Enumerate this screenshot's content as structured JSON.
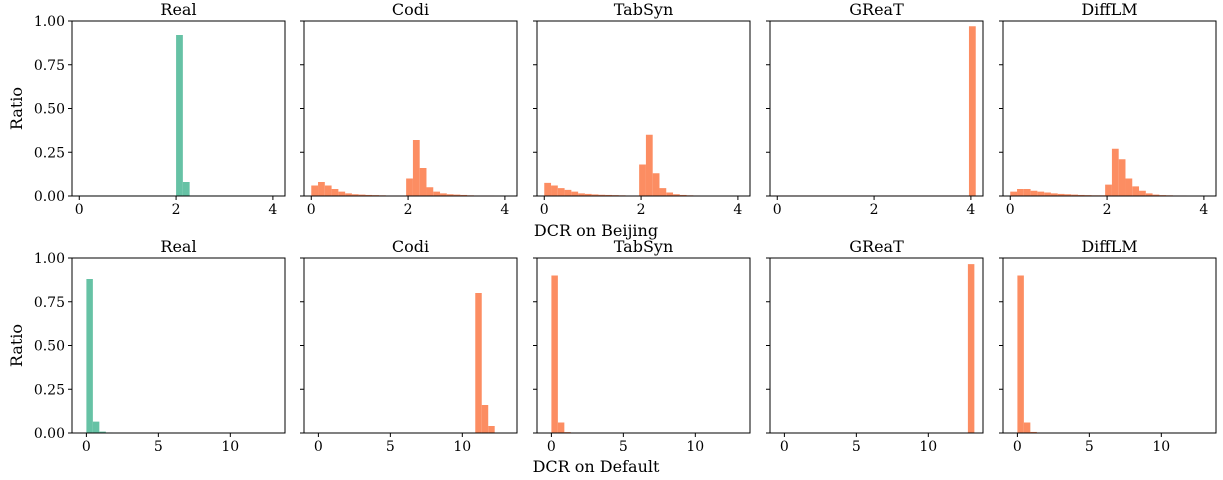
{
  "figure": {
    "ylabel": "Ratio",
    "colors": {
      "real": "#66c2a5",
      "synthetic": "#fc8d62"
    }
  },
  "chart_data": [
    {
      "type": "bar",
      "row": 0,
      "title": "Real",
      "xlabel": "",
      "color": "#66c2a5",
      "xlim": [
        -0.15,
        4.25
      ],
      "ylim": [
        0,
        1.0
      ],
      "xticks": [
        0,
        2,
        4
      ],
      "yticks": [
        "0.00",
        "0.25",
        "0.50",
        "0.75",
        "1.00"
      ],
      "bin_width": 0.14,
      "bins": [
        [
          -0.1,
          0.003
        ],
        [
          0.04,
          0.003
        ],
        [
          0.18,
          0.003
        ],
        [
          0.32,
          0.003
        ],
        [
          0.46,
          0.003
        ],
        [
          0.6,
          0.003
        ],
        [
          0.74,
          0.003
        ],
        [
          0.88,
          0.003
        ],
        [
          1.02,
          0.003
        ],
        [
          1.16,
          0.003
        ],
        [
          1.3,
          0.003
        ],
        [
          1.44,
          0.003
        ],
        [
          1.58,
          0.003
        ],
        [
          1.72,
          0.003
        ],
        [
          1.86,
          0.003
        ],
        [
          2.0,
          0.92
        ],
        [
          2.14,
          0.08
        ],
        [
          2.28,
          0.003
        ],
        [
          2.42,
          0.003
        ],
        [
          2.56,
          0.003
        ],
        [
          2.7,
          0.003
        ],
        [
          2.84,
          0.003
        ],
        [
          2.98,
          0.003
        ],
        [
          3.12,
          0.003
        ],
        [
          3.26,
          0.003
        ],
        [
          3.4,
          0.003
        ],
        [
          3.54,
          0.003
        ],
        [
          3.68,
          0.003
        ],
        [
          3.82,
          0.003
        ],
        [
          3.96,
          0.003
        ]
      ]
    },
    {
      "type": "bar",
      "row": 0,
      "title": "Codi",
      "xlabel": "",
      "color": "#fc8d62",
      "xlim": [
        -0.15,
        4.25
      ],
      "ylim": [
        0,
        1.0
      ],
      "xticks": [
        0,
        2,
        4
      ],
      "yticks": [],
      "bin_width": 0.14,
      "bins": [
        [
          0.0,
          0.06
        ],
        [
          0.14,
          0.08
        ],
        [
          0.28,
          0.06
        ],
        [
          0.42,
          0.04
        ],
        [
          0.56,
          0.025
        ],
        [
          0.7,
          0.015
        ],
        [
          0.84,
          0.01
        ],
        [
          0.98,
          0.008
        ],
        [
          1.12,
          0.006
        ],
        [
          1.26,
          0.005
        ],
        [
          1.4,
          0.004
        ],
        [
          1.54,
          0.003
        ],
        [
          1.68,
          0.003
        ],
        [
          1.82,
          0.003
        ],
        [
          1.96,
          0.1
        ],
        [
          2.1,
          0.32
        ],
        [
          2.24,
          0.16
        ],
        [
          2.38,
          0.05
        ],
        [
          2.52,
          0.025
        ],
        [
          2.66,
          0.015
        ],
        [
          2.8,
          0.01
        ],
        [
          2.94,
          0.008
        ],
        [
          3.08,
          0.006
        ],
        [
          3.22,
          0.004
        ],
        [
          3.36,
          0.003
        ],
        [
          3.5,
          0.003
        ],
        [
          3.64,
          0.003
        ],
        [
          3.78,
          0.002
        ],
        [
          3.92,
          0.002
        ]
      ]
    },
    {
      "type": "bar",
      "row": 0,
      "title": "TabSyn",
      "xlabel": "",
      "color": "#fc8d62",
      "xlim": [
        -0.15,
        4.25
      ],
      "ylim": [
        0,
        1.0
      ],
      "xticks": [
        0,
        2,
        4
      ],
      "yticks": [],
      "bin_width": 0.14,
      "bins": [
        [
          0.0,
          0.075
        ],
        [
          0.14,
          0.06
        ],
        [
          0.28,
          0.045
        ],
        [
          0.42,
          0.035
        ],
        [
          0.56,
          0.025
        ],
        [
          0.7,
          0.015
        ],
        [
          0.84,
          0.012
        ],
        [
          0.98,
          0.009
        ],
        [
          1.12,
          0.007
        ],
        [
          1.26,
          0.006
        ],
        [
          1.4,
          0.005
        ],
        [
          1.54,
          0.004
        ],
        [
          1.68,
          0.003
        ],
        [
          1.82,
          0.003
        ],
        [
          1.96,
          0.18
        ],
        [
          2.1,
          0.35
        ],
        [
          2.24,
          0.13
        ],
        [
          2.38,
          0.045
        ],
        [
          2.52,
          0.02
        ],
        [
          2.66,
          0.01
        ],
        [
          2.8,
          0.006
        ],
        [
          2.94,
          0.004
        ],
        [
          3.08,
          0.003
        ],
        [
          3.22,
          0.002
        ],
        [
          3.36,
          0.002
        ],
        [
          3.5,
          0.002
        ],
        [
          3.64,
          0.002
        ],
        [
          3.78,
          0.002
        ],
        [
          3.92,
          0.002
        ]
      ]
    },
    {
      "type": "bar",
      "row": 0,
      "title": "GReaT",
      "xlabel": "",
      "color": "#fc8d62",
      "xlim": [
        -0.15,
        4.25
      ],
      "ylim": [
        0,
        1.0
      ],
      "xticks": [
        0,
        2,
        4
      ],
      "yticks": [],
      "bin_width": 0.14,
      "bins": [
        [
          -0.1,
          0.003
        ],
        [
          0.04,
          0.003
        ],
        [
          0.18,
          0.003
        ],
        [
          0.32,
          0.003
        ],
        [
          0.46,
          0.003
        ],
        [
          0.6,
          0.003
        ],
        [
          0.74,
          0.003
        ],
        [
          0.88,
          0.003
        ],
        [
          1.02,
          0.003
        ],
        [
          1.16,
          0.003
        ],
        [
          1.3,
          0.003
        ],
        [
          1.44,
          0.003
        ],
        [
          1.58,
          0.003
        ],
        [
          1.72,
          0.003
        ],
        [
          1.86,
          0.003
        ],
        [
          2.0,
          0.003
        ],
        [
          2.14,
          0.003
        ],
        [
          2.28,
          0.003
        ],
        [
          2.42,
          0.003
        ],
        [
          2.56,
          0.003
        ],
        [
          2.7,
          0.003
        ],
        [
          2.84,
          0.003
        ],
        [
          2.98,
          0.003
        ],
        [
          3.12,
          0.003
        ],
        [
          3.26,
          0.003
        ],
        [
          3.4,
          0.003
        ],
        [
          3.54,
          0.003
        ],
        [
          3.68,
          0.003
        ],
        [
          3.82,
          0.003
        ],
        [
          3.96,
          0.97
        ]
      ]
    },
    {
      "type": "bar",
      "row": 0,
      "title": "DiffLM",
      "xlabel": "",
      "color": "#fc8d62",
      "xlim": [
        -0.15,
        4.25
      ],
      "ylim": [
        0,
        1.0
      ],
      "xticks": [
        0,
        2,
        4
      ],
      "yticks": [],
      "bin_width": 0.14,
      "bins": [
        [
          0.0,
          0.025
        ],
        [
          0.14,
          0.04
        ],
        [
          0.28,
          0.04
        ],
        [
          0.42,
          0.03
        ],
        [
          0.56,
          0.025
        ],
        [
          0.7,
          0.02
        ],
        [
          0.84,
          0.015
        ],
        [
          0.98,
          0.012
        ],
        [
          1.12,
          0.01
        ],
        [
          1.26,
          0.008
        ],
        [
          1.4,
          0.006
        ],
        [
          1.54,
          0.005
        ],
        [
          1.68,
          0.004
        ],
        [
          1.82,
          0.004
        ],
        [
          1.96,
          0.065
        ],
        [
          2.1,
          0.27
        ],
        [
          2.24,
          0.21
        ],
        [
          2.38,
          0.1
        ],
        [
          2.52,
          0.055
        ],
        [
          2.66,
          0.03
        ],
        [
          2.8,
          0.015
        ],
        [
          2.94,
          0.008
        ],
        [
          3.08,
          0.005
        ],
        [
          3.22,
          0.004
        ],
        [
          3.36,
          0.003
        ],
        [
          3.5,
          0.003
        ],
        [
          3.64,
          0.002
        ],
        [
          3.78,
          0.002
        ],
        [
          3.92,
          0.002
        ]
      ]
    },
    {
      "type": "bar",
      "row": 1,
      "title": "Real",
      "xlabel": "",
      "color": "#66c2a5",
      "xlim": [
        -1.0,
        13.8
      ],
      "ylim": [
        0,
        1.0
      ],
      "xticks": [
        0,
        5,
        10
      ],
      "yticks": [
        "0.00",
        "0.25",
        "0.50",
        "0.75",
        "1.00"
      ],
      "bin_width": 0.45,
      "bins": [
        [
          0.0,
          0.88
        ],
        [
          0.45,
          0.065
        ],
        [
          0.9,
          0.008
        ],
        [
          1.35,
          0.003
        ],
        [
          1.8,
          0.002
        ],
        [
          2.25,
          0.0015
        ],
        [
          2.7,
          0.001
        ]
      ]
    },
    {
      "type": "bar",
      "row": 1,
      "title": "Codi",
      "xlabel": "",
      "color": "#fc8d62",
      "xlim": [
        -1.0,
        13.8
      ],
      "ylim": [
        0,
        1.0
      ],
      "xticks": [
        0,
        5,
        10
      ],
      "yticks": [],
      "bin_width": 0.45,
      "bins": [
        [
          10.9,
          0.8
        ],
        [
          11.35,
          0.16
        ],
        [
          11.8,
          0.04
        ]
      ]
    },
    {
      "type": "bar",
      "row": 1,
      "title": "TabSyn",
      "xlabel": "",
      "color": "#fc8d62",
      "xlim": [
        -1.0,
        13.8
      ],
      "ylim": [
        0,
        1.0
      ],
      "xticks": [
        0,
        5,
        10
      ],
      "yticks": [],
      "bin_width": 0.45,
      "bins": [
        [
          0.0,
          0.9
        ],
        [
          0.45,
          0.06
        ],
        [
          0.9,
          0.005
        ],
        [
          1.35,
          0.002
        ]
      ]
    },
    {
      "type": "bar",
      "row": 1,
      "title": "GReaT",
      "xlabel": "",
      "color": "#fc8d62",
      "xlim": [
        -1.0,
        13.8
      ],
      "ylim": [
        0,
        1.0
      ],
      "xticks": [
        0,
        5,
        10
      ],
      "yticks": [],
      "bin_width": 0.45,
      "bins": [
        [
          12.75,
          0.965
        ]
      ]
    },
    {
      "type": "bar",
      "row": 1,
      "title": "DiffLM",
      "xlabel": "",
      "color": "#fc8d62",
      "xlim": [
        -1.0,
        13.8
      ],
      "ylim": [
        0,
        1.0
      ],
      "xticks": [
        0,
        5,
        10
      ],
      "yticks": [],
      "bin_width": 0.45,
      "bins": [
        [
          0.0,
          0.9
        ],
        [
          0.45,
          0.06
        ],
        [
          0.9,
          0.006
        ],
        [
          1.35,
          0.002
        ]
      ]
    }
  ],
  "row_labels": [
    "DCR on Beijing",
    "DCR on Default"
  ]
}
